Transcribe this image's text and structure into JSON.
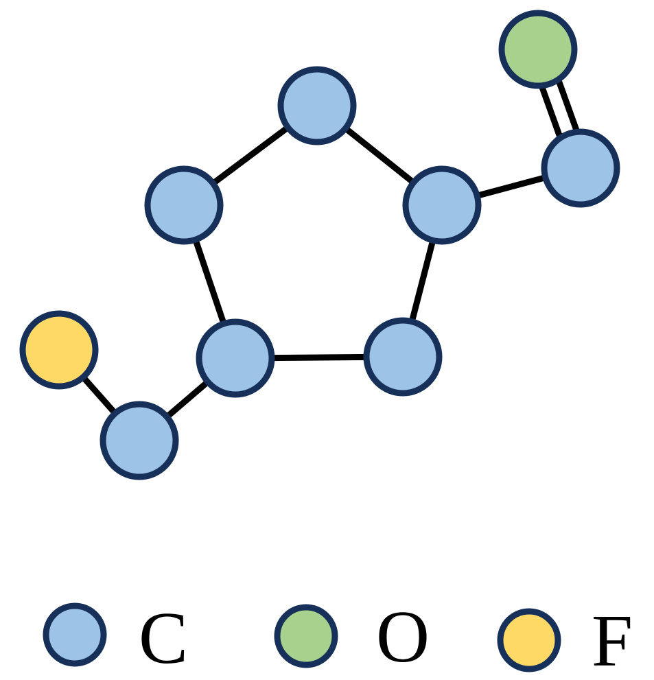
{
  "elements": {
    "C": {
      "color": "#9dc3e6"
    },
    "O": {
      "color": "#a9d18e"
    },
    "F": {
      "color": "#ffd966"
    }
  },
  "outline_color": "#17305a",
  "bond_color": "#000000",
  "molecule": {
    "atoms": [
      {
        "id": "c-top",
        "element": "C"
      },
      {
        "id": "c-upper-left",
        "element": "C"
      },
      {
        "id": "c-upper-right",
        "element": "C"
      },
      {
        "id": "c-lower-left",
        "element": "C"
      },
      {
        "id": "c-lower-right",
        "element": "C"
      },
      {
        "id": "c-carbonyl",
        "element": "C"
      },
      {
        "id": "o-carbonyl",
        "element": "O"
      },
      {
        "id": "c-methylene",
        "element": "C"
      },
      {
        "id": "f-terminal",
        "element": "F"
      }
    ],
    "bonds": [
      {
        "from": "c-top",
        "to": "c-upper-left",
        "order": 1
      },
      {
        "from": "c-top",
        "to": "c-upper-right",
        "order": 1
      },
      {
        "from": "c-upper-left",
        "to": "c-lower-left",
        "order": 1
      },
      {
        "from": "c-upper-right",
        "to": "c-lower-right",
        "order": 1
      },
      {
        "from": "c-lower-left",
        "to": "c-lower-right",
        "order": 1
      },
      {
        "from": "c-upper-right",
        "to": "c-carbonyl",
        "order": 1
      },
      {
        "from": "c-carbonyl",
        "to": "o-carbonyl",
        "order": 2
      },
      {
        "from": "c-lower-left",
        "to": "c-methylene",
        "order": 1
      },
      {
        "from": "c-methylene",
        "to": "f-terminal",
        "order": 1
      }
    ]
  },
  "legend": [
    {
      "element": "C",
      "label": "C"
    },
    {
      "element": "O",
      "label": "O"
    },
    {
      "element": "F",
      "label": "F"
    }
  ]
}
